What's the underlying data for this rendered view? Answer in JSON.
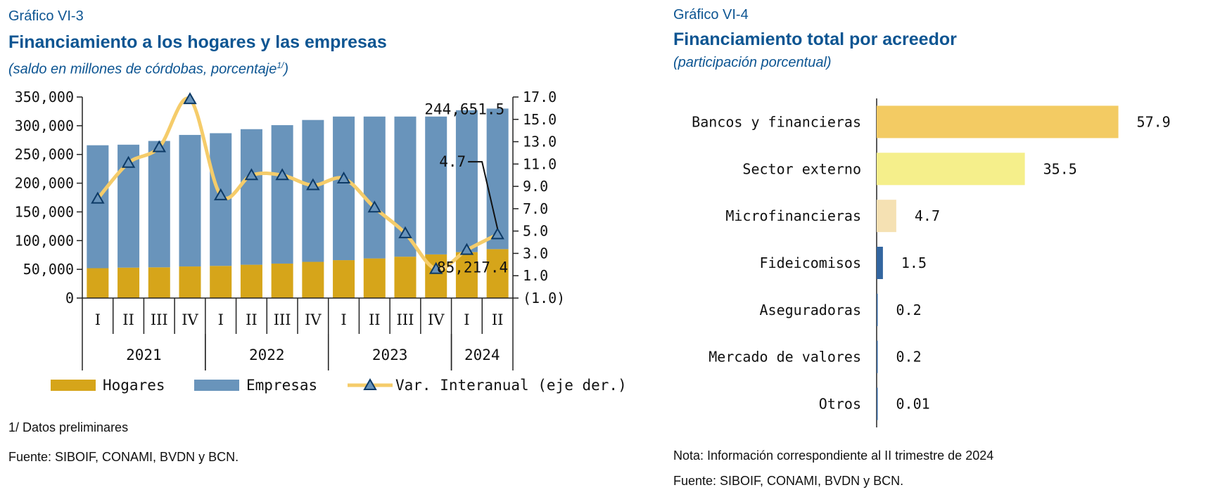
{
  "left": {
    "label": "Gráfico VI-3",
    "title": "Financiamiento a los hogares y las empresas",
    "subtitle": "(saldo en millones de córdobas, porcentaje",
    "subtitle_sup": "1/",
    "subtitle_end": ")",
    "note1": "1/ Datos preliminares",
    "source": "Fuente: SIBOIF, CONAMI, BVDN y BCN."
  },
  "right": {
    "label": "Gráfico VI-4",
    "title": "Financiamiento total por acreedor",
    "subtitle": "(participación porcentual)",
    "note1": "Nota: Información correspondiente al II trimestre de 2024",
    "source": "Fuente: SIBOIF, CONAMI, BVDN y BCN."
  },
  "chart_data": [
    {
      "type": "bar",
      "stacked": true,
      "categories": [
        "I",
        "II",
        "III",
        "IV",
        "I",
        "II",
        "III",
        "IV",
        "I",
        "II",
        "III",
        "IV",
        "I",
        "II"
      ],
      "years": [
        {
          "label": "2021",
          "count": 4
        },
        {
          "label": "2022",
          "count": 4
        },
        {
          "label": "2023",
          "count": 4
        },
        {
          "label": "2024",
          "count": 2
        }
      ],
      "series": [
        {
          "name": "Hogares",
          "color": "#d6a51a",
          "values": [
            52000,
            53000,
            53500,
            55000,
            56000,
            58000,
            60000,
            63000,
            66000,
            69000,
            72000,
            76000,
            80000,
            85217.4
          ]
        },
        {
          "name": "Empresas",
          "color": "#6994bb",
          "values": [
            214000,
            214000,
            220000,
            229000,
            231000,
            236000,
            241000,
            247000,
            250000,
            247000,
            244000,
            240000,
            247000,
            244651.5
          ]
        }
      ],
      "line_series": {
        "name": "Var. Interanual (eje der.)",
        "color": "#f5cc6a",
        "marker": "triangle",
        "values": [
          7.9,
          11.1,
          12.5,
          16.8,
          8.2,
          10.0,
          10.0,
          9.1,
          9.7,
          7.1,
          4.8,
          1.6,
          3.3,
          4.7
        ]
      },
      "ylim": [
        0,
        350000
      ],
      "y_ticks": [
        "0",
        "50,000",
        "100,000",
        "150,000",
        "200,000",
        "250,000",
        "300,000",
        "350,000"
      ],
      "y2lim": [
        -1,
        17
      ],
      "y2_ticks": [
        "(1.0)",
        "1.0",
        "3.0",
        "5.0",
        "7.0",
        "9.0",
        "11.0",
        "13.0",
        "15.0",
        "17.0"
      ],
      "annotations": {
        "empresas_last": "244,651.5",
        "hogares_last": "85,217.4",
        "var_last": "4.7"
      },
      "legend_position": "bottom"
    },
    {
      "type": "bar",
      "orientation": "horizontal",
      "categories": [
        "Bancos y financieras",
        "Sector externo",
        "Microfinancieras",
        "Fideicomisos",
        "Aseguradoras",
        "Mercado de valores",
        "Otros"
      ],
      "values": [
        57.9,
        35.5,
        4.7,
        1.5,
        0.2,
        0.2,
        0.01
      ],
      "value_labels": [
        "57.9",
        "35.5",
        "4.7",
        "1.5",
        "0.2",
        "0.2",
        "0.01"
      ],
      "colors": [
        "#f3cb63",
        "#f5ef8b",
        "#f5e1b3",
        "#3366a0",
        "#3366a0",
        "#3366a0",
        "#3366a0"
      ],
      "xlim": [
        0,
        60
      ]
    }
  ]
}
